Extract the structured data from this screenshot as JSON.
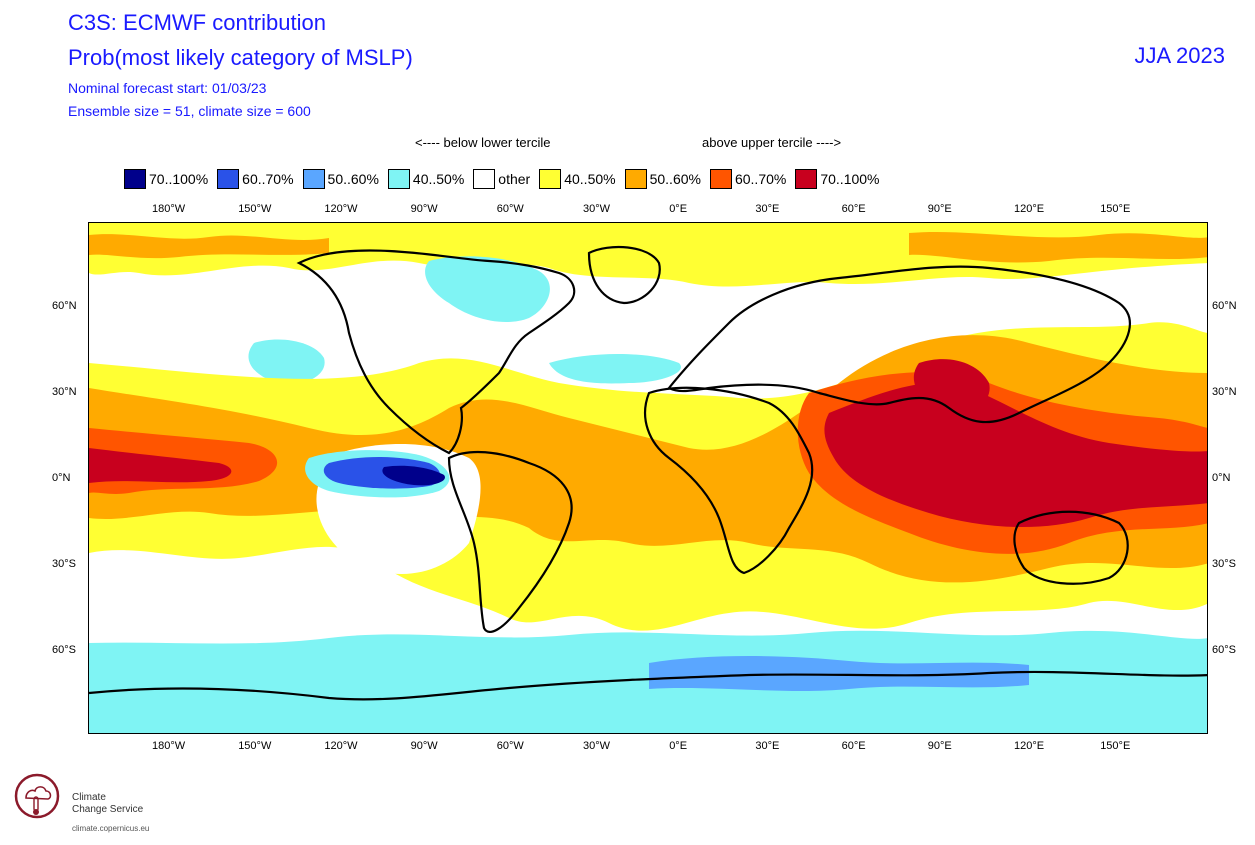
{
  "header": {
    "title_line1": "C3S: ECMWF contribution",
    "title_line2": "Prob(most likely category of MSLP)",
    "period": "JJA 2023",
    "forecast_start": "Nominal forecast start: 01/03/23",
    "ensemble_info": "Ensemble size = 51, climate size = 600"
  },
  "tercile_labels": {
    "below": "<---- below lower tercile",
    "above": "above upper tercile ---->"
  },
  "legend": [
    {
      "label": "70..100%",
      "color": "#00008b"
    },
    {
      "label": "60..70%",
      "color": "#2a52e8"
    },
    {
      "label": "50..60%",
      "color": "#5aa6ff"
    },
    {
      "label": "40..50%",
      "color": "#7ff4f4"
    },
    {
      "label": "other",
      "color": "#ffffff"
    },
    {
      "label": "40..50%",
      "color": "#ffff33"
    },
    {
      "label": "50..60%",
      "color": "#ffaa00"
    },
    {
      "label": "60..70%",
      "color": "#ff5500"
    },
    {
      "label": "70..100%",
      "color": "#c8001e"
    }
  ],
  "axes": {
    "lon_ticks": [
      "180°W",
      "150°W",
      "120°W",
      "90°W",
      "60°W",
      "30°W",
      "0°E",
      "30°E",
      "60°E",
      "90°E",
      "120°E",
      "150°E"
    ],
    "lat_ticks": [
      "60°N",
      "30°N",
      "0°N",
      "30°S",
      "60°S"
    ]
  },
  "logo": {
    "line1": "Climate",
    "line2": "Change Service",
    "url": "climate.copernicus.eu"
  }
}
